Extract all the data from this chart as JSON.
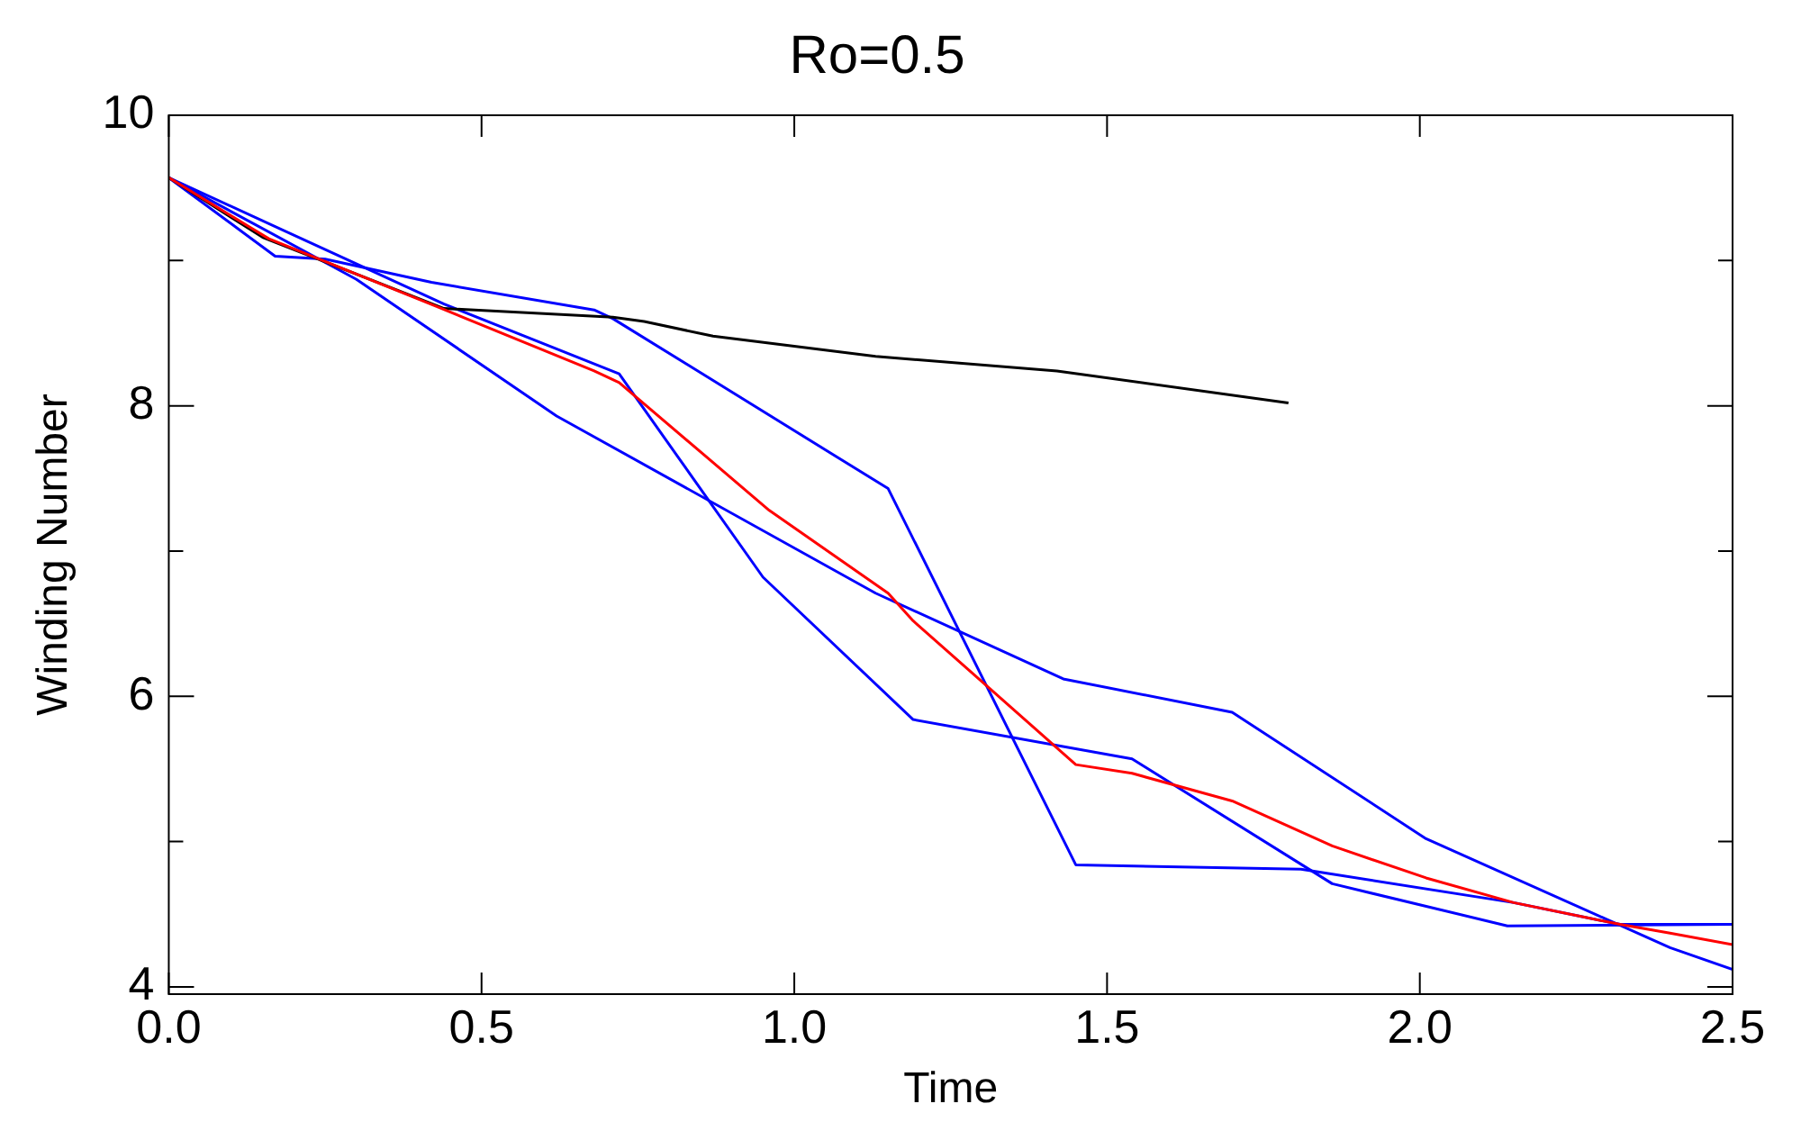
{
  "chart_data": {
    "type": "line",
    "title": "Ro=0.5",
    "xlabel": "Time",
    "ylabel": "Winding Number",
    "xlim": [
      0,
      2.5
    ],
    "xticks": [
      {
        "value": 0,
        "label": "0.0"
      },
      {
        "value": 0.5,
        "label": "0.5"
      },
      {
        "value": 1,
        "label": "1.0"
      },
      {
        "value": 1.5,
        "label": "1.5"
      },
      {
        "value": 2,
        "label": "2.0"
      },
      {
        "value": 2.5,
        "label": "2.5"
      }
    ],
    "ylim": [
      3.95,
      10
    ],
    "yticks": [
      4,
      {
        "value": 5,
        "label": null
      },
      6,
      {
        "value": 7,
        "label": null
      },
      8,
      {
        "value": 9,
        "label": null
      },
      10
    ],
    "grid": false,
    "legend": false,
    "marker": "none",
    "line_style": "solid",
    "series": [
      {
        "color": "#ff0000",
        "x": [
          0,
          0.16,
          0.43,
          0.68,
          0.72,
          0.96,
          1.15,
          1.19,
          1.45,
          1.54,
          1.7,
          1.86,
          2.01,
          2.15,
          2.32,
          2.4,
          2.5
        ],
        "values": [
          9.57,
          9.15,
          8.68,
          8.24,
          8.16,
          7.28,
          6.71,
          6.52,
          5.53,
          5.47,
          5.28,
          4.97,
          4.75,
          4.58,
          4.43,
          4.37,
          4.29
        ]
      },
      {
        "color": "#000000",
        "x": [
          0,
          0.15,
          0.44,
          0.71,
          0.76,
          0.87,
          1.13,
          1.42,
          1.79
        ],
        "values": [
          9.57,
          9.16,
          8.67,
          8.61,
          8.58,
          8.48,
          8.34,
          8.24,
          8.02
        ]
      },
      {
        "color": "#0000ff",
        "x": [
          0,
          0.17,
          0.25,
          0.42,
          0.68,
          0.71,
          1.15,
          1.45,
          1.81,
          2.15,
          2.32,
          2.5
        ],
        "values": [
          9.57,
          9.03,
          9.01,
          8.85,
          8.66,
          8.6,
          7.43,
          4.84,
          4.81,
          4.58,
          4.43,
          4.43
        ]
      },
      {
        "color": "#0000ff",
        "x": [
          0,
          0.3,
          0.62,
          1.13,
          1.43,
          1.7,
          2.01,
          2.4,
          2.5
        ],
        "values": [
          9.57,
          8.87,
          7.93,
          6.71,
          6.12,
          5.89,
          5.02,
          4.27,
          4.12
        ]
      },
      {
        "color": "#0000ff",
        "x": [
          0,
          0.44,
          0.72,
          0.95,
          1.19,
          1.54,
          1.86,
          2.14,
          2.5
        ],
        "values": [
          9.57,
          8.7,
          8.22,
          6.82,
          5.84,
          5.57,
          4.71,
          4.42,
          4.43
        ]
      }
    ]
  }
}
